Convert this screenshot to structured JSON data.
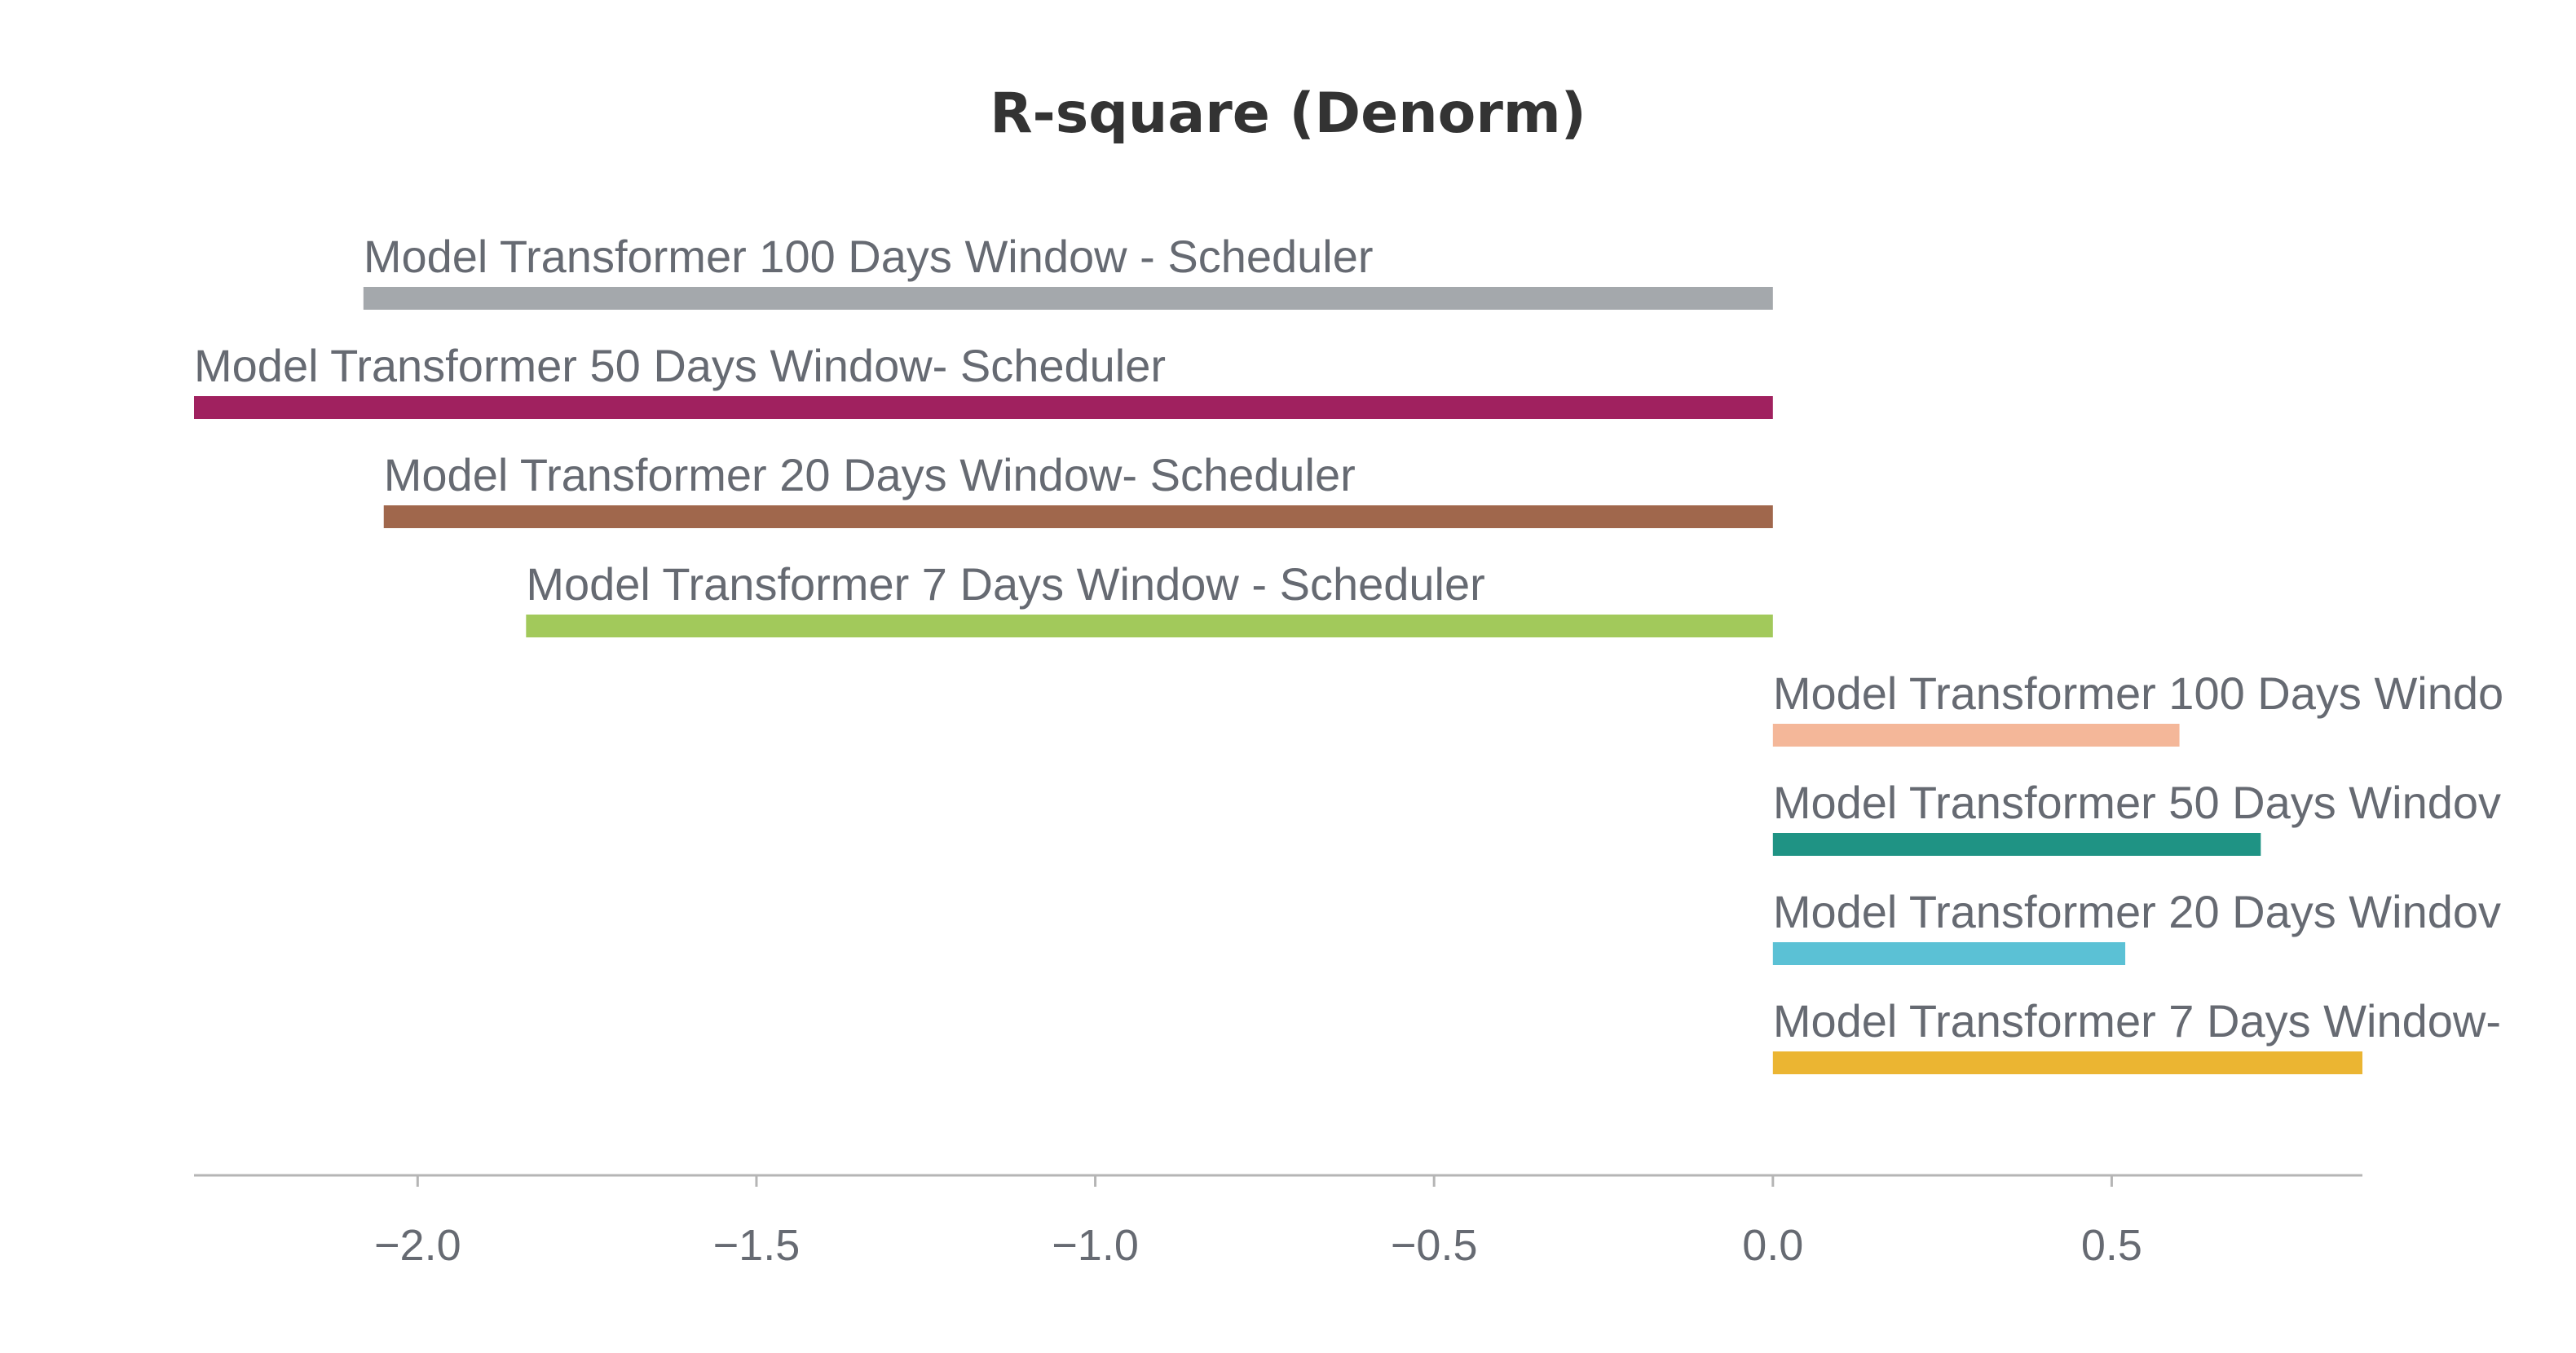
{
  "chart_data": {
    "type": "bar",
    "orientation": "horizontal",
    "title": "R-square (Denorm)",
    "xlabel": "",
    "ylabel": "",
    "xlim": [
      -2.33,
      0.87
    ],
    "xticks": [
      -2.0,
      -1.5,
      -1.0,
      -0.5,
      0.0,
      0.5
    ],
    "xtick_labels": [
      "−2.0",
      "−1.5",
      "−1.0",
      "−0.5",
      "0.0",
      "0.5"
    ],
    "grid": false,
    "legend": "none",
    "categories": [
      "Model Transformer 100 Days Window - Scheduler",
      "Model Transformer 50 Days Window- Scheduler",
      "Model Transformer 20 Days Window- Scheduler",
      "Model Transformer 7 Days Window - Scheduler",
      "Model Transformer 100 Days Windo",
      "Model Transformer 50 Days Windov",
      "Model Transformer 20 Days Windov",
      "Model Transformer 7 Days Window-"
    ],
    "values": [
      -2.08,
      -2.33,
      -2.05,
      -1.84,
      0.6,
      0.72,
      0.52,
      0.87
    ],
    "colors": [
      "#a4a8ac",
      "#a0215f",
      "#a0674c",
      "#a2c95b",
      "#f4b799",
      "#1f9384",
      "#5bc1d5",
      "#ebb532"
    ]
  }
}
